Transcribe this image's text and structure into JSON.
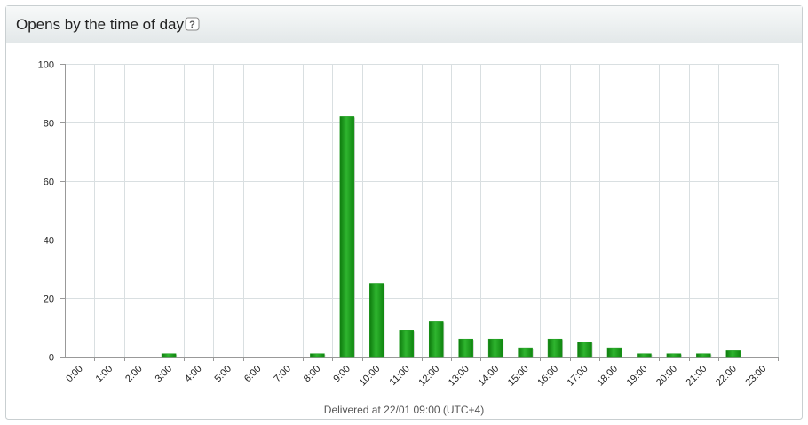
{
  "chart_data": {
    "type": "bar",
    "title": "Opens by the time of day",
    "help": "?",
    "categories": [
      "0:00",
      "1:00",
      "2:00",
      "3:00",
      "4:00",
      "5:00",
      "6:00",
      "7:00",
      "8:00",
      "9:00",
      "10:00",
      "11:00",
      "12:00",
      "13:00",
      "14:00",
      "15:00",
      "16:00",
      "17:00",
      "18:00",
      "19:00",
      "20:00",
      "21:00",
      "22:00",
      "23:00"
    ],
    "values": [
      0,
      0,
      0,
      1,
      0,
      0,
      0,
      0,
      1,
      82,
      25,
      9,
      12,
      6,
      6,
      3,
      6,
      5,
      3,
      1,
      1,
      1,
      2,
      0
    ],
    "color": "#1a9a1a",
    "ylim": [
      0,
      100
    ],
    "yticks": [
      0,
      20,
      40,
      60,
      80,
      100
    ],
    "grid": true,
    "annotation": "Delivered at 22/01 09:00 (UTC+4)"
  }
}
